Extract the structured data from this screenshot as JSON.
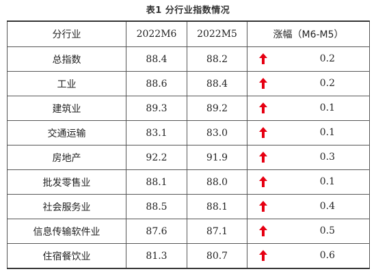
{
  "caption": "表1 分行业指数情况",
  "header": {
    "col1": "分行业",
    "col2": "2022M6",
    "col3": "2022M5",
    "col4": "涨幅（M6-M5）"
  },
  "rows": [
    {
      "industry": "总指数",
      "m6": "88.4",
      "m5": "88.2",
      "change": "0.2",
      "direction": "up"
    },
    {
      "industry": "工业",
      "m6": "88.6",
      "m5": "88.4",
      "change": "0.2",
      "direction": "up"
    },
    {
      "industry": "建筑业",
      "m6": "89.3",
      "m5": "89.2",
      "change": "0.1",
      "direction": "up"
    },
    {
      "industry": "交通运输",
      "m6": "83.1",
      "m5": "83.0",
      "change": "0.1",
      "direction": "up"
    },
    {
      "industry": "房地产",
      "m6": "92.2",
      "m5": "91.9",
      "change": "0.3",
      "direction": "up"
    },
    {
      "industry": "批发零售业",
      "m6": "88.1",
      "m5": "88.0",
      "change": "0.1",
      "direction": "up"
    },
    {
      "industry": "社会服务业",
      "m6": "88.5",
      "m5": "88.1",
      "change": "0.4",
      "direction": "up"
    },
    {
      "industry": "信息传输软件业",
      "m6": "87.6",
      "m5": "87.1",
      "change": "0.5",
      "direction": "up"
    },
    {
      "industry": "住宿餐饮业",
      "m6": "81.3",
      "m5": "80.7",
      "change": "0.6",
      "direction": "up"
    }
  ],
  "icons": {
    "change_indicator": "up-arrow-icon"
  },
  "colors": {
    "up_arrow": "#e60012",
    "border": "#555555"
  }
}
